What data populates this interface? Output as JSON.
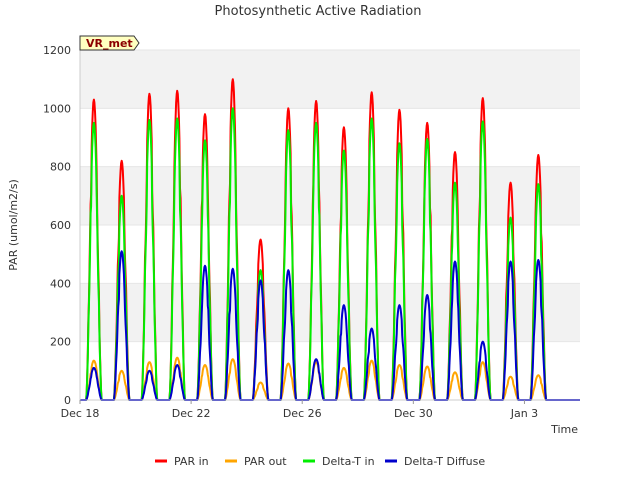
{
  "chart_data": {
    "type": "line",
    "title": "Photosynthetic Active Radiation",
    "xlabel": "Time",
    "ylabel": "PAR (umol/m2/s)",
    "tag": "VR_met",
    "ylim": [
      0,
      1200
    ],
    "yticks": [
      0,
      200,
      400,
      600,
      800,
      1000,
      1200
    ],
    "xlim": [
      "Dec 18",
      "Jan 5"
    ],
    "xticks": [
      "Dec 18",
      "Dec 22",
      "Dec 26",
      "Dec 30",
      "Jan 3"
    ],
    "grid": "horizontal alternating bands",
    "legend_position": "bottom",
    "days": [
      "Dec 18",
      "Dec 19",
      "Dec 20",
      "Dec 21",
      "Dec 22",
      "Dec 23",
      "Dec 24",
      "Dec 25",
      "Dec 26",
      "Dec 27",
      "Dec 28",
      "Dec 29",
      "Dec 30",
      "Dec 31",
      "Jan 1",
      "Jan 2",
      "Jan 3",
      "Jan 4"
    ],
    "series": [
      {
        "name": "PAR in",
        "color": "#ff0000",
        "daily_max": [
          1030,
          820,
          1050,
          1060,
          980,
          1100,
          550,
          1000,
          1025,
          935,
          1055,
          995,
          950,
          850,
          1035,
          745,
          840,
          0
        ]
      },
      {
        "name": "PAR out",
        "color": "#ffa500",
        "daily_max": [
          135,
          100,
          130,
          145,
          120,
          140,
          60,
          125,
          130,
          110,
          135,
          120,
          115,
          95,
          130,
          80,
          85,
          0
        ]
      },
      {
        "name": "Delta-T in",
        "color": "#00ee00",
        "daily_max": [
          950,
          700,
          960,
          965,
          890,
          1000,
          445,
          925,
          950,
          855,
          965,
          880,
          895,
          745,
          955,
          625,
          740,
          0
        ]
      },
      {
        "name": "Delta-T Diffuse",
        "color": "#0000cc",
        "daily_max": [
          110,
          510,
          100,
          120,
          460,
          450,
          410,
          445,
          140,
          325,
          245,
          325,
          360,
          475,
          200,
          475,
          480,
          0
        ]
      }
    ]
  }
}
